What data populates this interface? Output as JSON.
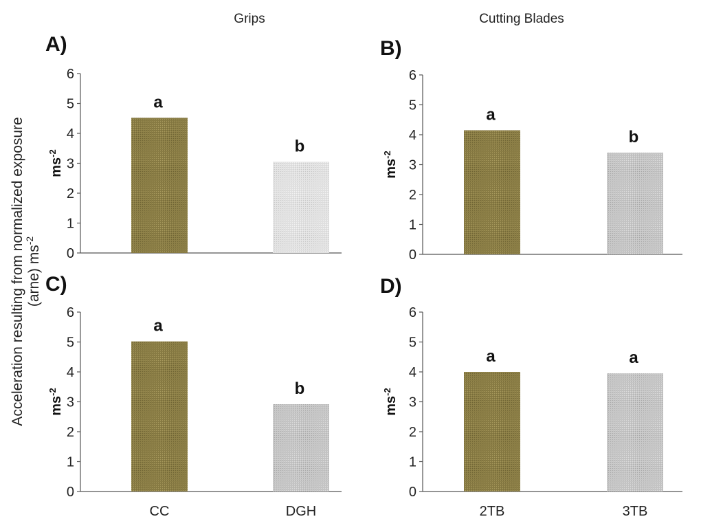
{
  "column_titles": {
    "left": "Grips",
    "right": "Cutting Blades"
  },
  "global_ylabel": {
    "line1": "Acceleration resulting from normalized exposure",
    "line2": "(arne) ms",
    "line2_sup": "-2"
  },
  "colors": {
    "olive": "#8a7d45",
    "light_gray": "#dcdcdc",
    "gray": "#c4c4c4",
    "axis": "#555555"
  },
  "chart_data": [
    {
      "type": "bar",
      "panel": "A)",
      "ylabel": "ms",
      "ylabel_sup": "-2",
      "ylim": [
        0,
        6
      ],
      "yticks": [
        0,
        1,
        2,
        3,
        4,
        5,
        6
      ],
      "categories": [
        "CC",
        "DGH"
      ],
      "show_categories": false,
      "values": [
        4.52,
        3.05
      ],
      "letters": [
        "a",
        "b"
      ],
      "colors": [
        "olive",
        "light_gray"
      ]
    },
    {
      "type": "bar",
      "panel": "B)",
      "ylabel": "ms",
      "ylabel_sup": "-2",
      "ylim": [
        0,
        6
      ],
      "yticks": [
        0,
        1,
        2,
        3,
        4,
        5,
        6
      ],
      "categories": [
        "2TB",
        "3TB"
      ],
      "show_categories": false,
      "values": [
        4.15,
        3.4
      ],
      "letters": [
        "a",
        "b"
      ],
      "colors": [
        "olive",
        "gray"
      ]
    },
    {
      "type": "bar",
      "panel": "C)",
      "ylabel": "ms",
      "ylabel_sup": "-2",
      "ylim": [
        0,
        6
      ],
      "yticks": [
        0,
        1,
        2,
        3,
        4,
        5,
        6
      ],
      "categories": [
        "CC",
        "DGH"
      ],
      "show_categories": true,
      "values": [
        5.02,
        2.92
      ],
      "letters": [
        "a",
        "b"
      ],
      "colors": [
        "olive",
        "gray"
      ]
    },
    {
      "type": "bar",
      "panel": "D)",
      "ylabel": "ms",
      "ylabel_sup": "-2",
      "ylim": [
        0,
        6
      ],
      "yticks": [
        0,
        1,
        2,
        3,
        4,
        5,
        6
      ],
      "categories": [
        "2TB",
        "3TB"
      ],
      "show_categories": true,
      "values": [
        4.0,
        3.95
      ],
      "letters": [
        "a",
        "a"
      ],
      "colors": [
        "olive",
        "gray"
      ]
    }
  ]
}
